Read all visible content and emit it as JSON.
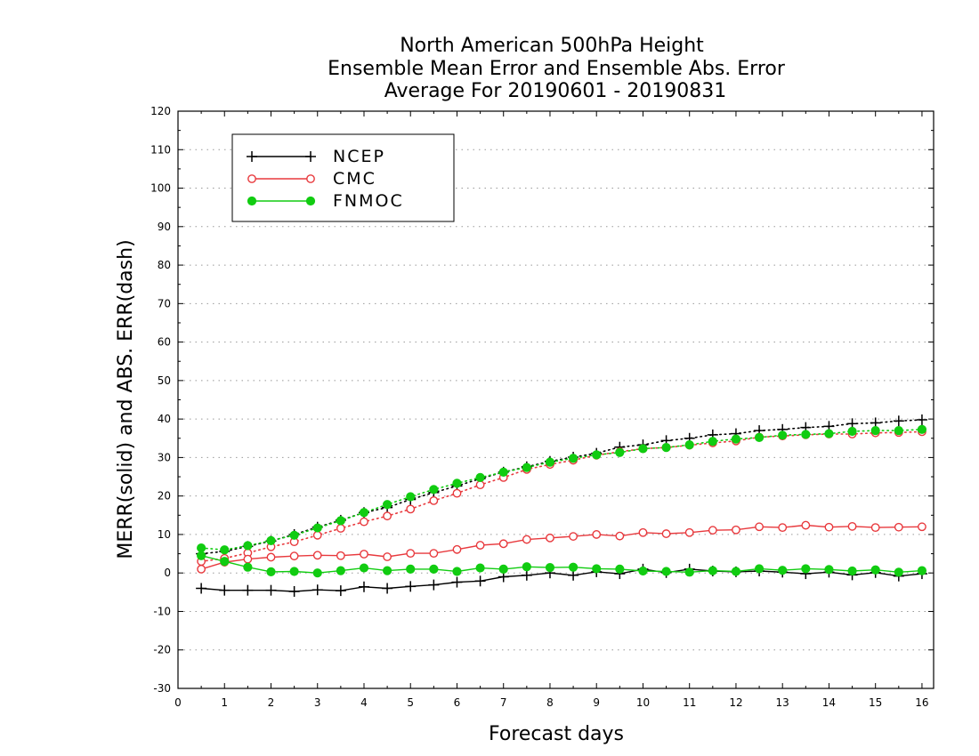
{
  "chart_data": {
    "type": "line",
    "title": [
      "North American 500hPa Height",
      "Ensemble Mean Error and Ensemble Abs. Error",
      "Average For 20190601 - 20190831"
    ],
    "xlabel": "Forecast days",
    "ylabel": "MERR(solid) and ABS. ERR(dash)",
    "xlim": [
      0,
      16.25
    ],
    "ylim": [
      -30,
      120
    ],
    "xticks": [
      0,
      1,
      2,
      3,
      4,
      5,
      6,
      7,
      8,
      9,
      10,
      11,
      12,
      13,
      14,
      15,
      16
    ],
    "yticks": [
      -30,
      -20,
      -10,
      0,
      10,
      20,
      30,
      40,
      50,
      60,
      70,
      80,
      90,
      100,
      110,
      120
    ],
    "grid": "horizontal dotted",
    "legend_position": "top-left",
    "x": [
      0.5,
      1.0,
      1.5,
      2.0,
      2.5,
      3.0,
      3.5,
      4.0,
      4.5,
      5.0,
      5.5,
      6.0,
      6.5,
      7.0,
      7.5,
      8.0,
      8.5,
      9.0,
      9.5,
      10.0,
      10.5,
      11.0,
      11.5,
      12.0,
      12.5,
      13.0,
      13.5,
      14.0,
      14.5,
      15.0,
      15.5,
      16.0
    ],
    "series": [
      {
        "name": "NCEP",
        "color": "#000000",
        "marker": "plus",
        "mean_error": [
          -4.0,
          -4.5,
          -4.5,
          -4.5,
          -4.8,
          -4.4,
          -4.6,
          -3.6,
          -4.0,
          -3.5,
          -3.1,
          -2.4,
          -2.1,
          -1.0,
          -0.6,
          0.0,
          -0.6,
          0.3,
          -0.2,
          1.0,
          0.1,
          1.0,
          0.5,
          0.3,
          0.5,
          0.2,
          -0.2,
          0.2,
          -0.5,
          0.1,
          -0.8,
          -0.2
        ],
        "abs_error": [
          5.0,
          5.6,
          6.9,
          8.3,
          10.0,
          11.9,
          13.7,
          15.7,
          17.0,
          19.1,
          20.9,
          22.6,
          24.5,
          26.2,
          27.6,
          29.0,
          30.1,
          31.1,
          32.7,
          33.3,
          34.4,
          35.0,
          35.9,
          36.2,
          37.0,
          37.3,
          37.8,
          38.1,
          38.8,
          39.0,
          39.5,
          39.8
        ]
      },
      {
        "name": "CMC",
        "color": "#e8393d",
        "marker": "open-circle",
        "mean_error": [
          1.0,
          2.8,
          3.6,
          4.1,
          4.4,
          4.6,
          4.5,
          4.9,
          4.2,
          5.1,
          5.1,
          6.1,
          7.2,
          7.6,
          8.7,
          9.1,
          9.5,
          10.0,
          9.6,
          10.5,
          10.2,
          10.5,
          11.1,
          11.2,
          12.0,
          11.8,
          12.4,
          11.9,
          12.1,
          11.8,
          11.9,
          12.0
        ],
        "abs_error": [
          3.0,
          3.8,
          5.2,
          6.8,
          8.1,
          9.8,
          11.6,
          13.3,
          14.8,
          16.6,
          18.8,
          20.7,
          22.9,
          24.8,
          26.9,
          28.2,
          29.3,
          30.6,
          31.5,
          32.3,
          32.6,
          33.2,
          33.8,
          34.3,
          35.3,
          35.6,
          35.9,
          36.1,
          36.1,
          36.4,
          36.5,
          36.7
        ]
      },
      {
        "name": "FNMOC",
        "color": "#11cc11",
        "marker": "filled-circle",
        "mean_error": [
          4.5,
          3.0,
          1.5,
          0.3,
          0.4,
          0.0,
          0.6,
          1.3,
          0.6,
          1.0,
          1.0,
          0.4,
          1.3,
          1.0,
          1.6,
          1.4,
          1.5,
          1.1,
          1.0,
          0.5,
          0.4,
          0.2,
          0.6,
          0.4,
          1.1,
          0.7,
          1.1,
          0.9,
          0.5,
          0.8,
          0.2,
          0.6
        ],
        "abs_error": [
          6.5,
          6.0,
          7.1,
          8.4,
          9.8,
          11.7,
          13.6,
          15.7,
          17.8,
          19.8,
          21.7,
          23.3,
          24.8,
          26.2,
          27.4,
          28.8,
          29.8,
          30.7,
          31.3,
          32.3,
          32.6,
          33.3,
          34.2,
          34.8,
          35.2,
          35.8,
          36.0,
          36.2,
          36.8,
          37.0,
          37.0,
          37.3
        ]
      }
    ]
  }
}
